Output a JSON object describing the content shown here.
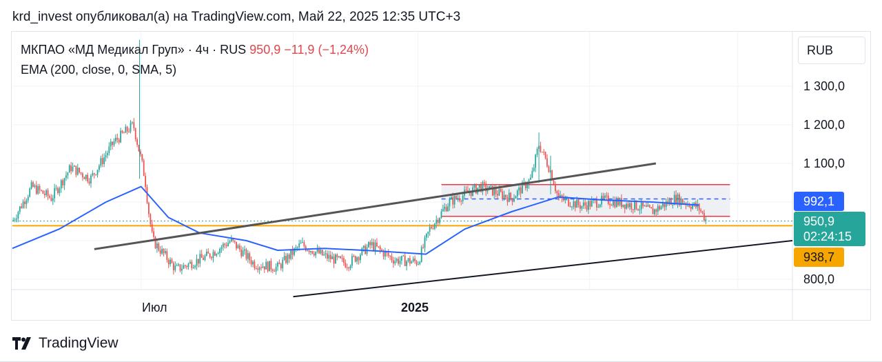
{
  "header": {
    "text": "krd_invest опубликовал(а) на TradingView.com, Май 22, 2025 12:35 UTC+3"
  },
  "legend": {
    "symbol": "МКПАО «МД Медикал Груп»",
    "sep1": "·",
    "interval": "4ч",
    "sep2": "·",
    "exchange": "RUS",
    "last_price": "950,9",
    "change": "−11,9 (−1,24%)",
    "indicator": "EMA (200, close, 0, SMA, 5)"
  },
  "price_axis": {
    "currency": "RUB",
    "ticks": [
      "1 300,0",
      "1 200,0",
      "1 100,0",
      "800,0"
    ]
  },
  "time_axis": {
    "ticks": [
      "Июл",
      "2025"
    ]
  },
  "price_labels": {
    "ema_value": "992,1",
    "last_price": "950,9",
    "countdown": "02:24:15",
    "level": "938,7"
  },
  "footer": {
    "brand": "TradingView"
  },
  "colors": {
    "candle_up": "#26a69a",
    "candle_down": "#ef5350",
    "ema": "#2962ff",
    "level_line": "#f7a600",
    "trendline": "#555555",
    "range_border": "#f23645",
    "range_fill": "#eef0f4"
  },
  "chart_data": {
    "type": "candlestick",
    "title": "МКПАО «МД Медикал Груп» · 4ч · RUS",
    "currency": "RUB",
    "ylim": [
      780,
      1420
    ],
    "x_labels": [
      "Июл",
      "2025"
    ],
    "price_path": [
      {
        "t": 0,
        "p": 950
      },
      {
        "t": 0.025,
        "p": 1040
      },
      {
        "t": 0.05,
        "p": 1010
      },
      {
        "t": 0.075,
        "p": 1090
      },
      {
        "t": 0.1,
        "p": 1060
      },
      {
        "t": 0.13,
        "p": 1155
      },
      {
        "t": 0.155,
        "p": 1200
      },
      {
        "t": 0.165,
        "p": 1110
      },
      {
        "t": 0.17,
        "p": 1060
      },
      {
        "t": 0.175,
        "p": 970
      },
      {
        "t": 0.18,
        "p": 900
      },
      {
        "t": 0.21,
        "p": 825
      },
      {
        "t": 0.25,
        "p": 860
      },
      {
        "t": 0.28,
        "p": 900
      },
      {
        "t": 0.31,
        "p": 840
      },
      {
        "t": 0.34,
        "p": 830
      },
      {
        "t": 0.37,
        "p": 890
      },
      {
        "t": 0.4,
        "p": 860
      },
      {
        "t": 0.43,
        "p": 840
      },
      {
        "t": 0.46,
        "p": 890
      },
      {
        "t": 0.49,
        "p": 850
      },
      {
        "t": 0.52,
        "p": 845
      },
      {
        "t": 0.535,
        "p": 930
      },
      {
        "t": 0.56,
        "p": 1000
      },
      {
        "t": 0.6,
        "p": 1040
      },
      {
        "t": 0.64,
        "p": 1010
      },
      {
        "t": 0.665,
        "p": 1060
      },
      {
        "t": 0.675,
        "p": 1150
      },
      {
        "t": 0.69,
        "p": 1080
      },
      {
        "t": 0.7,
        "p": 1010
      },
      {
        "t": 0.73,
        "p": 990
      },
      {
        "t": 0.76,
        "p": 1005
      },
      {
        "t": 0.8,
        "p": 990
      },
      {
        "t": 0.82,
        "p": 975
      },
      {
        "t": 0.85,
        "p": 1010
      },
      {
        "t": 0.88,
        "p": 985
      },
      {
        "t": 0.89,
        "p": 951
      }
    ],
    "ema_path": [
      {
        "t": 0,
        "p": 880
      },
      {
        "t": 0.06,
        "p": 930
      },
      {
        "t": 0.12,
        "p": 1000
      },
      {
        "t": 0.165,
        "p": 1040
      },
      {
        "t": 0.2,
        "p": 960
      },
      {
        "t": 0.24,
        "p": 920
      },
      {
        "t": 0.3,
        "p": 900
      },
      {
        "t": 0.34,
        "p": 875
      },
      {
        "t": 0.4,
        "p": 880
      },
      {
        "t": 0.47,
        "p": 873
      },
      {
        "t": 0.53,
        "p": 865
      },
      {
        "t": 0.58,
        "p": 930
      },
      {
        "t": 0.64,
        "p": 975
      },
      {
        "t": 0.7,
        "p": 1013
      },
      {
        "t": 0.76,
        "p": 1005
      },
      {
        "t": 0.82,
        "p": 1000
      },
      {
        "t": 0.88,
        "p": 992
      }
    ],
    "ema_value": 992.1,
    "last_price": 950.9,
    "change": -11.9,
    "change_pct": -1.24,
    "horizontal_level": 938.7,
    "range_box": {
      "upper": 1045,
      "mid": 1008,
      "lower": 963,
      "t_start": 0.55,
      "t_end": 0.92
    },
    "trendlines": [
      {
        "t1": 0.105,
        "p1": 878,
        "t2": 0.825,
        "p2": 1100
      },
      {
        "t1": 0.36,
        "p1": 755,
        "t2": 1.0,
        "p2": 900
      }
    ]
  }
}
